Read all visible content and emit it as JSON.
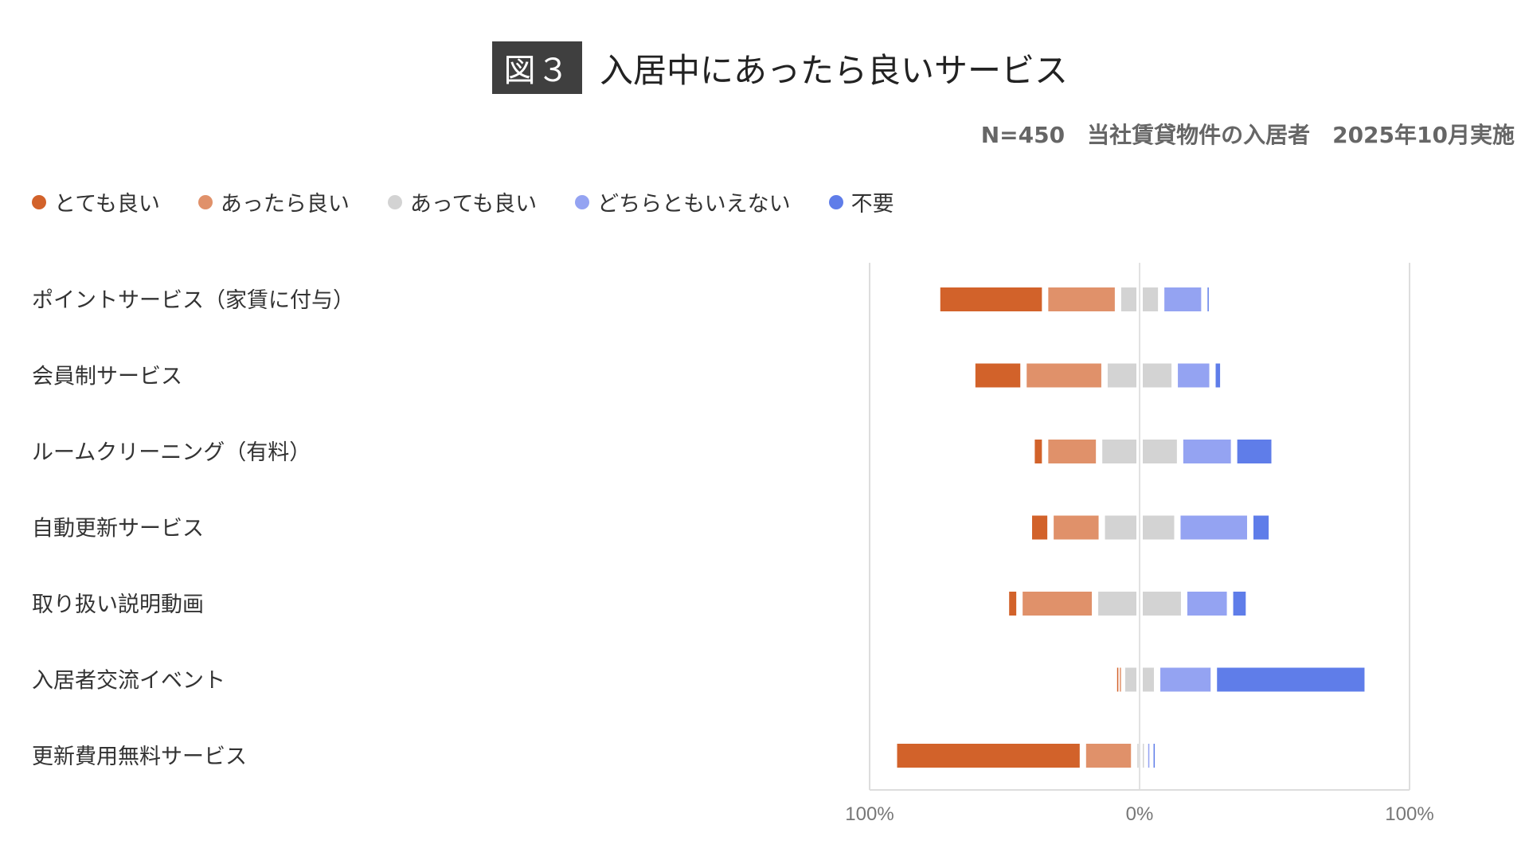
{
  "header": {
    "figure_badge": "図３",
    "title": "入居中にあったら良いサービス",
    "subtitle": "N=450　当社賃貸物件の入居者　2025年10月実施"
  },
  "chart_data": {
    "type": "bar",
    "orientation": "horizontal-diverging-stacked",
    "title": "入居中にあったら良いサービス",
    "categories": [
      "ポイントサービス（家賃に付与）",
      "会員制サービス",
      "ルームクリーニング（有料）",
      "自動更新サービス",
      "取り扱い説明動画",
      "入居者交流イベント",
      "更新費用無料サービス"
    ],
    "series": [
      {
        "name": "とても良い",
        "color": "#d2622a",
        "values": [
          40,
          19,
          5,
          8,
          5,
          1,
          70
        ],
        "side": "negative"
      },
      {
        "name": "あったら良い",
        "color": "#e0916a",
        "values": [
          27,
          30,
          20,
          19,
          28,
          2,
          19
        ],
        "side": "negative"
      },
      {
        "name": "あっても良い",
        "color": "#d3d3d3",
        "values": [
          16,
          26,
          30,
          28,
          33,
          13,
          4
        ],
        "side": "split"
      },
      {
        "name": "どちらともいえない",
        "color": "#94a3f2",
        "values": [
          16,
          14,
          20,
          27,
          17,
          21,
          2
        ],
        "side": "positive"
      },
      {
        "name": "不要",
        "color": "#5f7de9",
        "values": [
          1,
          4,
          15,
          8,
          7,
          57,
          1
        ],
        "side": "positive"
      }
    ],
    "x_ticks": [
      "100%",
      "0%",
      "100%"
    ],
    "xlim": [
      -100,
      100
    ],
    "legend_position": "top-left",
    "grid": false
  }
}
